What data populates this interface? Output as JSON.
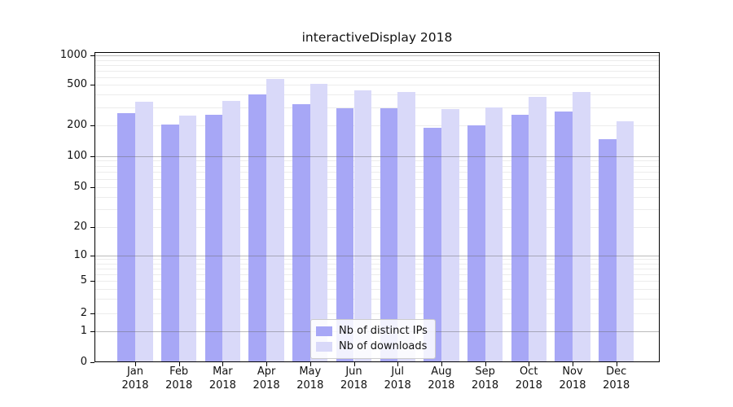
{
  "chart_data": {
    "type": "bar",
    "title": "interactiveDisplay 2018",
    "xlabel": "",
    "ylabel": "",
    "y_scale": "symlog",
    "y_ticks": [
      0,
      1,
      2,
      5,
      10,
      20,
      50,
      100,
      200,
      500,
      1000
    ],
    "grid": true,
    "categories_month": [
      "Jan",
      "Feb",
      "Mar",
      "Apr",
      "May",
      "Jun",
      "Jul",
      "Aug",
      "Sep",
      "Oct",
      "Nov",
      "Dec"
    ],
    "categories_year": "2018",
    "series": [
      {
        "name": "Nb of distinct IPs",
        "color": "#a7a7f6",
        "values": [
          265,
          205,
          256,
          400,
          325,
          295,
          295,
          190,
          200,
          255,
          275,
          146
        ]
      },
      {
        "name": "Nb of downloads",
        "color": "#d9d9f9",
        "values": [
          340,
          250,
          345,
          575,
          515,
          445,
          430,
          290,
          298,
          385,
          430,
          218
        ]
      }
    ],
    "legend": {
      "position": "lower center",
      "entries": [
        "Nb of distinct IPs",
        "Nb of downloads"
      ]
    }
  },
  "colors": {
    "bar_distinct_ips": "#a7a7f6",
    "bar_downloads": "#d9d9f9",
    "major_gridline": "#6f6f6f",
    "minor_gridline": "#ececec",
    "axis_text": "#111111"
  }
}
